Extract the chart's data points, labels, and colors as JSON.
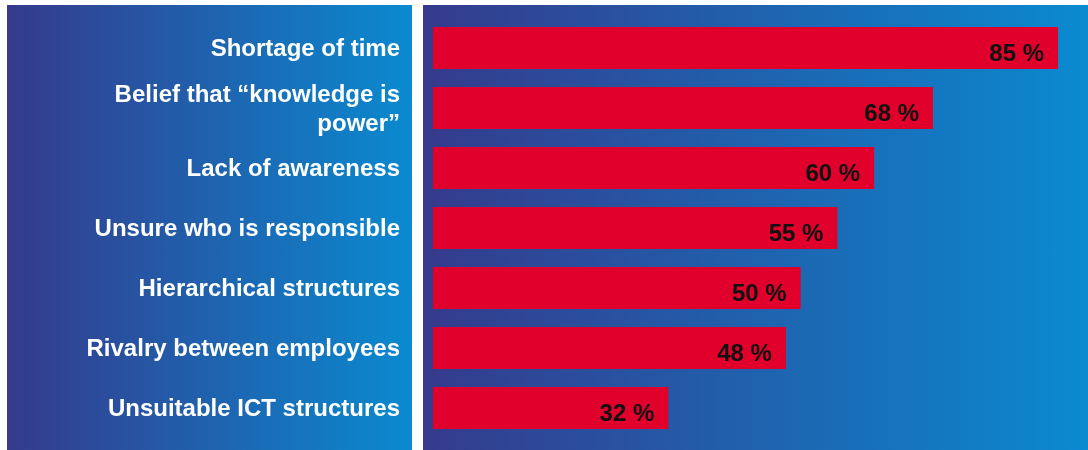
{
  "chart_data": {
    "type": "bar",
    "orientation": "horizontal",
    "categories": [
      "Shortage of time",
      "Belief that “knowledge is power”",
      "Lack of awareness",
      "Unsure who is responsible",
      "Hierarchical structures",
      "Rivalry between employees",
      "Unsuitable ICT structures"
    ],
    "values": [
      85,
      68,
      60,
      55,
      50,
      48,
      32
    ],
    "value_labels": [
      "85 %",
      "68 %",
      "60 %",
      "55 %",
      "50 %",
      "48 %",
      "32 %"
    ],
    "color": "#e0002b"
  }
}
